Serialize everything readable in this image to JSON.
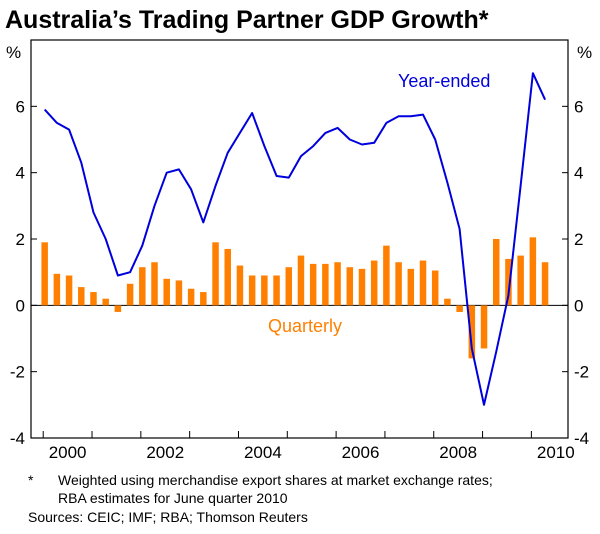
{
  "colors": {
    "year_ended": "#0000dd",
    "quarterly": "#ff8000",
    "frame": "#000000",
    "background": "#ffffff"
  },
  "chart_data": {
    "type": "line",
    "title": "Australia’s Trading Partner GDP Growth*",
    "unit_left": "%",
    "unit_right": "%",
    "ylim": [
      -4,
      8
    ],
    "xlim": [
      1999.75,
      2010.75
    ],
    "y_ticks": [
      -4,
      -2,
      0,
      2,
      4,
      6
    ],
    "y_tick_labels": [
      "-4",
      "-2",
      "0",
      "2",
      "4",
      "6"
    ],
    "x_ticks": [
      2000,
      2002,
      2004,
      2006,
      2008,
      2010
    ],
    "x_tick_labels": [
      "2000",
      "2002",
      "2004",
      "2006",
      "2008",
      "2010"
    ],
    "grid": false,
    "series": [
      {
        "name": "Year-ended",
        "type": "line",
        "color": "#0000dd",
        "x": [
          "2000-Q1",
          "2000-Q2",
          "2000-Q3",
          "2000-Q4",
          "2001-Q1",
          "2001-Q2",
          "2001-Q3",
          "2001-Q4",
          "2002-Q1",
          "2002-Q2",
          "2002-Q3",
          "2002-Q4",
          "2003-Q1",
          "2003-Q2",
          "2003-Q3",
          "2003-Q4",
          "2004-Q1",
          "2004-Q2",
          "2004-Q3",
          "2004-Q4",
          "2005-Q1",
          "2005-Q2",
          "2005-Q3",
          "2005-Q4",
          "2006-Q1",
          "2006-Q2",
          "2006-Q3",
          "2006-Q4",
          "2007-Q1",
          "2007-Q2",
          "2007-Q3",
          "2007-Q4",
          "2008-Q1",
          "2008-Q2",
          "2008-Q3",
          "2008-Q4",
          "2009-Q1",
          "2009-Q2",
          "2009-Q3",
          "2009-Q4",
          "2010-Q1",
          "2010-Q2"
        ],
        "values": [
          5.9,
          5.5,
          5.3,
          4.3,
          2.8,
          2.0,
          0.9,
          1.0,
          1.8,
          3.0,
          4.0,
          4.1,
          3.5,
          2.5,
          3.6,
          4.6,
          5.2,
          5.8,
          4.8,
          3.9,
          3.85,
          4.5,
          4.8,
          5.2,
          5.35,
          5.0,
          4.85,
          4.9,
          5.5,
          5.7,
          5.7,
          5.75,
          5.0,
          3.7,
          2.3,
          -1.3,
          -3.0,
          -1.4,
          0.3,
          3.6,
          7.0,
          6.2
        ]
      },
      {
        "name": "Quarterly",
        "type": "bar",
        "color": "#ff8000",
        "x": [
          "2000-Q1",
          "2000-Q2",
          "2000-Q3",
          "2000-Q4",
          "2001-Q1",
          "2001-Q2",
          "2001-Q3",
          "2001-Q4",
          "2002-Q1",
          "2002-Q2",
          "2002-Q3",
          "2002-Q4",
          "2003-Q1",
          "2003-Q2",
          "2003-Q3",
          "2003-Q4",
          "2004-Q1",
          "2004-Q2",
          "2004-Q3",
          "2004-Q4",
          "2005-Q1",
          "2005-Q2",
          "2005-Q3",
          "2005-Q4",
          "2006-Q1",
          "2006-Q2",
          "2006-Q3",
          "2006-Q4",
          "2007-Q1",
          "2007-Q2",
          "2007-Q3",
          "2007-Q4",
          "2008-Q1",
          "2008-Q2",
          "2008-Q3",
          "2008-Q4",
          "2009-Q1",
          "2009-Q2",
          "2009-Q3",
          "2009-Q4",
          "2010-Q1",
          "2010-Q2"
        ],
        "values": [
          1.9,
          0.95,
          0.9,
          0.55,
          0.4,
          0.2,
          -0.2,
          0.65,
          1.15,
          1.3,
          0.8,
          0.75,
          0.5,
          0.4,
          1.9,
          1.7,
          1.2,
          0.9,
          0.9,
          0.9,
          1.15,
          1.5,
          1.25,
          1.25,
          1.3,
          1.15,
          1.1,
          1.35,
          1.8,
          1.3,
          1.1,
          1.35,
          1.05,
          0.2,
          -0.2,
          -1.6,
          -1.3,
          2.0,
          1.4,
          1.5,
          2.05,
          1.3
        ]
      }
    ],
    "footnote_marker": "*",
    "footnote_lines": [
      "Weighted using merchandise export shares at market exchange rates;",
      "RBA estimates for June quarter 2010"
    ],
    "sources": "Sources: CEIC; IMF; RBA; Thomson Reuters"
  }
}
